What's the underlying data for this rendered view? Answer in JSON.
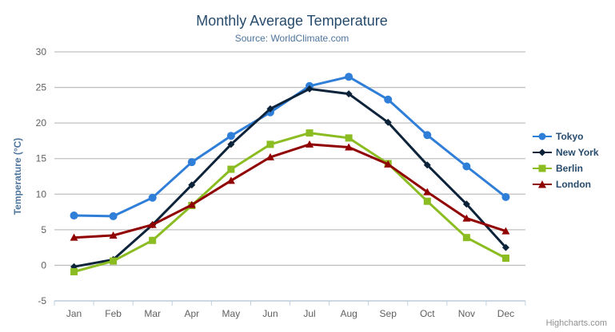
{
  "credit": "Highcharts.com",
  "chart_data": {
    "type": "line",
    "title": "Monthly Average Temperature",
    "subtitle": "Source: WorldClimate.com",
    "xlabel": "",
    "ylabel": "Temperature (°C)",
    "ylim": [
      -5,
      30
    ],
    "y_tick_interval": 5,
    "grid": true,
    "legend_position": "right",
    "categories": [
      "Jan",
      "Feb",
      "Mar",
      "Apr",
      "May",
      "Jun",
      "Jul",
      "Aug",
      "Sep",
      "Oct",
      "Nov",
      "Dec"
    ],
    "series": [
      {
        "name": "Tokyo",
        "color": "#2f7ed8",
        "marker": "circle",
        "values": [
          7.0,
          6.9,
          9.5,
          14.5,
          18.2,
          21.5,
          25.2,
          26.5,
          23.3,
          18.3,
          13.9,
          9.6
        ]
      },
      {
        "name": "New York",
        "color": "#0d233a",
        "marker": "diamond",
        "values": [
          -0.2,
          0.8,
          5.7,
          11.3,
          17.0,
          22.0,
          24.8,
          24.1,
          20.1,
          14.1,
          8.6,
          2.5
        ]
      },
      {
        "name": "Berlin",
        "color": "#8bbc21",
        "marker": "square",
        "values": [
          -0.9,
          0.6,
          3.5,
          8.4,
          13.5,
          17.0,
          18.6,
          17.9,
          14.3,
          9.0,
          3.9,
          1.0
        ]
      },
      {
        "name": "London",
        "color": "#910000",
        "marker": "triangle",
        "values": [
          3.9,
          4.2,
          5.7,
          8.5,
          11.9,
          15.2,
          17.0,
          16.6,
          14.2,
          10.3,
          6.6,
          4.8
        ]
      }
    ],
    "axis_colors": {
      "grid_line": "#C0C0C0",
      "axis_line": "#C0D0E0",
      "label": "#606060",
      "axis_title": "#4d759e"
    }
  }
}
